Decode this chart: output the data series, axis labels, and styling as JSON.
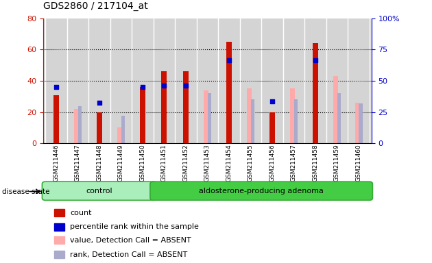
{
  "title": "GDS2860 / 217104_at",
  "samples": [
    "GSM211446",
    "GSM211447",
    "GSM211448",
    "GSM211449",
    "GSM211450",
    "GSM211451",
    "GSM211452",
    "GSM211453",
    "GSM211454",
    "GSM211455",
    "GSM211456",
    "GSM211457",
    "GSM211458",
    "GSM211459",
    "GSM211460"
  ],
  "count": [
    31,
    0,
    20,
    0,
    36,
    46,
    46,
    0,
    65,
    0,
    20,
    0,
    64,
    0,
    0
  ],
  "percentile_rank": [
    36,
    0,
    26,
    0,
    36,
    37,
    37,
    0,
    53,
    0,
    27,
    0,
    53,
    0,
    0
  ],
  "value_absent": [
    0,
    22,
    0,
    10,
    0,
    0,
    0,
    34,
    0,
    35,
    0,
    35,
    0,
    43,
    26
  ],
  "rank_absent": [
    0,
    30,
    0,
    22,
    0,
    0,
    0,
    40,
    0,
    35,
    0,
    35,
    0,
    40,
    32
  ],
  "ylim_left": [
    0,
    80
  ],
  "ylim_right": [
    0,
    100
  ],
  "yticks_left": [
    0,
    20,
    40,
    60,
    80
  ],
  "yticks_right": [
    0,
    25,
    50,
    75,
    100
  ],
  "ytick_labels_right": [
    "0",
    "25",
    "50",
    "75",
    "100%"
  ],
  "color_count": "#cc1100",
  "color_percentile": "#0000cc",
  "color_value_absent": "#ffaaaa",
  "color_rank_absent": "#aaaacc",
  "color_plot_bg": "#d4d4d4",
  "color_control_bg": "#aaeebb",
  "color_adenoma_bg": "#44cc44",
  "color_yaxis_left": "#cc1100",
  "color_yaxis_right": "#0000cc",
  "legend_items": [
    "count",
    "percentile rank within the sample",
    "value, Detection Call = ABSENT",
    "rank, Detection Call = ABSENT"
  ],
  "legend_colors": [
    "#cc1100",
    "#0000cc",
    "#ffaaaa",
    "#aaaacc"
  ],
  "control_label": "control",
  "adenoma_label": "aldosterone-producing adenoma",
  "disease_state_label": "disease state",
  "bw_count": 0.25,
  "bw_absent": 0.22,
  "bw_rank_absent": 0.18,
  "off_absent": -0.06,
  "off_rank_absent": 0.1
}
